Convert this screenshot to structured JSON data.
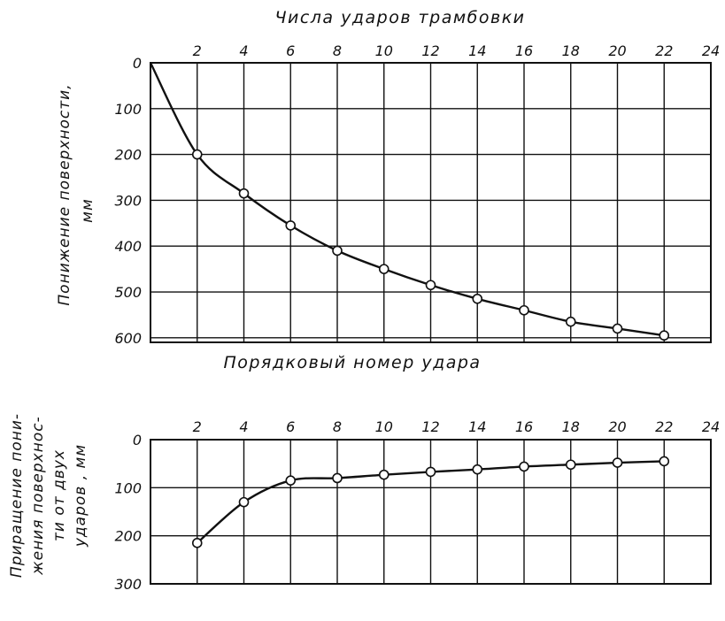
{
  "chart_data": [
    {
      "type": "line",
      "title": "Числа ударов трамбовки",
      "xlabel": "Порядковый номер удара",
      "ylabel": [
        "Понижение поверхности,",
        "мм"
      ],
      "x_ticks": [
        2,
        4,
        6,
        8,
        10,
        12,
        14,
        16,
        18,
        20,
        22,
        24
      ],
      "y_ticks": [
        0,
        100,
        200,
        300,
        400,
        500,
        600
      ],
      "xlim": [
        0,
        24
      ],
      "ylim": [
        0,
        610
      ],
      "y_inverted": true,
      "grid": true,
      "curve_origin": [
        0,
        0
      ],
      "x": [
        2,
        4,
        6,
        8,
        10,
        12,
        14,
        16,
        18,
        20,
        22
      ],
      "y": [
        200,
        285,
        355,
        410,
        450,
        485,
        515,
        540,
        565,
        580,
        595
      ]
    },
    {
      "type": "line",
      "title": "",
      "xlabel": "",
      "ylabel": [
        "Приращение пони-",
        "жения поверхнос-",
        "ти от двух",
        "ударов , мм"
      ],
      "x_ticks": [
        2,
        4,
        6,
        8,
        10,
        12,
        14,
        16,
        18,
        20,
        22,
        24
      ],
      "y_ticks": [
        0,
        100,
        200,
        300
      ],
      "xlim": [
        0,
        24
      ],
      "ylim": [
        0,
        300
      ],
      "y_inverted": true,
      "grid": true,
      "x": [
        2,
        4,
        6,
        8,
        10,
        12,
        14,
        16,
        18,
        20,
        22
      ],
      "y": [
        215,
        130,
        85,
        80,
        73,
        67,
        62,
        56,
        52,
        48,
        45
      ]
    }
  ]
}
